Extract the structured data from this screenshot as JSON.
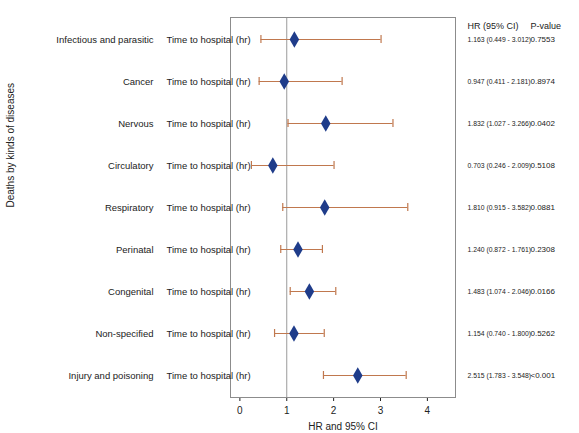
{
  "chart_data": {
    "type": "forest",
    "y_label": "Deaths by kinds of diseases",
    "x_label": "HR and 95% CI",
    "row_label": "Time to hospital (hr)",
    "columns": [
      "HR (95% CI)",
      "P-value"
    ],
    "categories": [
      "Infectious and parasitic",
      "Cancer",
      "Nervous",
      "Circulatory",
      "Respiratory",
      "Perinatal",
      "Congenital",
      "Non-specified",
      "Injury and poisoning"
    ],
    "values": [
      1.163,
      0.947,
      1.832,
      0.703,
      1.81,
      1.24,
      1.483,
      1.154,
      2.515
    ],
    "ci_lower": [
      0.449,
      0.411,
      1.027,
      0.246,
      0.915,
      0.872,
      1.074,
      0.74,
      1.783
    ],
    "ci_upper": [
      3.012,
      2.181,
      3.266,
      2.009,
      3.582,
      1.761,
      2.046,
      1.8,
      3.548
    ],
    "value_labels": [
      "1.163 (0.449 - 3.012)",
      "0.947 (0.411 - 2.181)",
      "1.832 (1.027 - 3.266)",
      "0.703 (0.246 - 2.009)",
      "1.810 (0.915 - 3.582)",
      "1.240 (0.872 - 1.761)",
      "1.483 (1.074 - 2.046)",
      "1.154 (0.740 - 1.800)",
      "2.515 (1.783 - 3.548)"
    ],
    "p_values": [
      "0.7553",
      "0.8974",
      "0.0402",
      "0.5108",
      "0.0881",
      "0.2308",
      "0.0166",
      "0.5262",
      "<0.001"
    ],
    "xlim": [
      -0.2,
      4.6
    ],
    "xticks": [
      0,
      1,
      2,
      3,
      4
    ],
    "reference": 1,
    "color": "#1f3c8a",
    "marker": "diamond"
  }
}
